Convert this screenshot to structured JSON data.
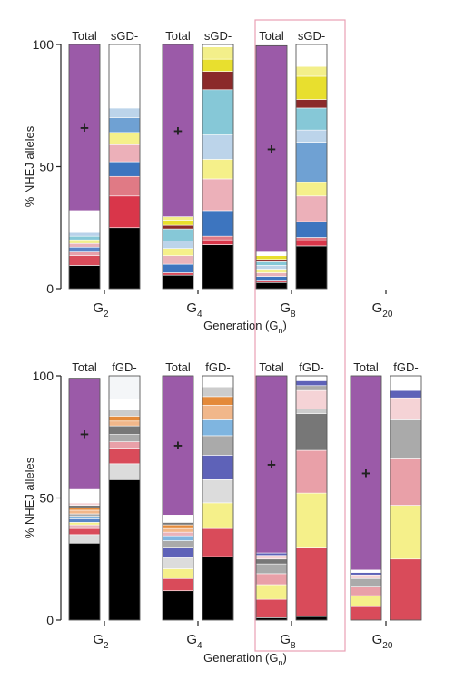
{
  "chart_data": [
    {
      "type": "bar",
      "stacked": true,
      "ylabel": "% NHEJ alleles",
      "xlabel": "Generation (G",
      "xlabel_sub": "n",
      "xlabel_tail": ")",
      "ylim": [
        0,
        100
      ],
      "yticks": [
        "0",
        "50",
        "100"
      ],
      "generations": [
        {
          "label": "G",
          "sub": "2",
          "bars": [
            {
              "name": "Total",
              "mark": "+",
              "segments": [
                {
                  "value": 9.5,
                  "color": "#000000"
                },
                {
                  "value": 4.0,
                  "color": "#d94b5a"
                },
                {
                  "value": 1.5,
                  "color": "#e8a0aa"
                },
                {
                  "value": 2.0,
                  "color": "#5a85c8"
                },
                {
                  "value": 1.5,
                  "color": "#e9b3bb"
                },
                {
                  "value": 1.5,
                  "color": "#f0ef8e"
                },
                {
                  "value": 1.5,
                  "color": "#86c8d7"
                },
                {
                  "value": 1.5,
                  "color": "#b9d2ea"
                },
                {
                  "value": 9.0,
                  "color": "#ffffff"
                },
                {
                  "value": 68.0,
                  "color": "#9b5aa8"
                }
              ]
            },
            {
              "name": "sGD-",
              "segments": [
                {
                  "value": 25.0,
                  "color": "#000000"
                },
                {
                  "value": 13.0,
                  "color": "#d9364a"
                },
                {
                  "value": 8.0,
                  "color": "#e07a85"
                },
                {
                  "value": 6.0,
                  "color": "#3d75bf"
                },
                {
                  "value": 7.0,
                  "color": "#ecb0b9"
                },
                {
                  "value": 5.0,
                  "color": "#f5f08a"
                },
                {
                  "value": 6.0,
                  "color": "#6fa1d3"
                },
                {
                  "value": 4.0,
                  "color": "#bcd4ea"
                },
                {
                  "value": 26.0,
                  "color": "#ffffff"
                }
              ]
            }
          ]
        },
        {
          "label": "G",
          "sub": "4",
          "bars": [
            {
              "name": "Total",
              "mark": "+",
              "segments": [
                {
                  "value": 5.5,
                  "color": "#000000"
                },
                {
                  "value": 1.0,
                  "color": "#d94b5a"
                },
                {
                  "value": 3.5,
                  "color": "#3d75bf"
                },
                {
                  "value": 3.5,
                  "color": "#e9b3bb"
                },
                {
                  "value": 3.0,
                  "color": "#f5f08a"
                },
                {
                  "value": 3.0,
                  "color": "#bcd4ea"
                },
                {
                  "value": 5.0,
                  "color": "#86c8d7"
                },
                {
                  "value": 1.5,
                  "color": "#8b2a2a"
                },
                {
                  "value": 2.0,
                  "color": "#e8df2e"
                },
                {
                  "value": 1.5,
                  "color": "#f3ef8a"
                },
                {
                  "value": 70.5,
                  "color": "#9b5aa8"
                }
              ]
            },
            {
              "name": "sGD-",
              "segments": [
                {
                  "value": 18.0,
                  "color": "#000000"
                },
                {
                  "value": 2.0,
                  "color": "#d9364a"
                },
                {
                  "value": 1.5,
                  "color": "#e07a85"
                },
                {
                  "value": 10.5,
                  "color": "#3d75bf"
                },
                {
                  "value": 13.0,
                  "color": "#ecb0b9"
                },
                {
                  "value": 8.0,
                  "color": "#f5f08a"
                },
                {
                  "value": 10.0,
                  "color": "#bcd4ea"
                },
                {
                  "value": 18.5,
                  "color": "#86c8d7"
                },
                {
                  "value": 7.5,
                  "color": "#8b2a2a"
                },
                {
                  "value": 5.0,
                  "color": "#e8df2e"
                },
                {
                  "value": 5.0,
                  "color": "#f3ef8a"
                },
                {
                  "value": 1.0,
                  "color": "#ffffff"
                }
              ]
            }
          ]
        },
        {
          "label": "G",
          "sub": "8",
          "bars": [
            {
              "name": "Total",
              "mark": "+",
              "segments": [
                {
                  "value": 2.5,
                  "color": "#000000"
                },
                {
                  "value": 1.0,
                  "color": "#d94b5a"
                },
                {
                  "value": 1.5,
                  "color": "#3d75bf"
                },
                {
                  "value": 1.5,
                  "color": "#e9b3bb"
                },
                {
                  "value": 1.5,
                  "color": "#f5f08a"
                },
                {
                  "value": 1.5,
                  "color": "#bcd4ea"
                },
                {
                  "value": 1.5,
                  "color": "#86c8d7"
                },
                {
                  "value": 1.0,
                  "color": "#8b2a2a"
                },
                {
                  "value": 1.5,
                  "color": "#e8df2e"
                },
                {
                  "value": 1.5,
                  "color": "#ffffff"
                },
                {
                  "value": 84.5,
                  "color": "#9b5aa8"
                }
              ]
            },
            {
              "name": "sGD-",
              "segments": [
                {
                  "value": 17.5,
                  "color": "#000000"
                },
                {
                  "value": 2.0,
                  "color": "#d9364a"
                },
                {
                  "value": 1.5,
                  "color": "#e07a85"
                },
                {
                  "value": 6.5,
                  "color": "#3d75bf"
                },
                {
                  "value": 10.5,
                  "color": "#ecb0b9"
                },
                {
                  "value": 5.5,
                  "color": "#f5f08a"
                },
                {
                  "value": 16.5,
                  "color": "#6fa1d3"
                },
                {
                  "value": 5.0,
                  "color": "#bcd4ea"
                },
                {
                  "value": 9.0,
                  "color": "#86c8d7"
                },
                {
                  "value": 3.5,
                  "color": "#8b2a2a"
                },
                {
                  "value": 9.5,
                  "color": "#e8df2e"
                },
                {
                  "value": 4.0,
                  "color": "#f3ef8a"
                },
                {
                  "value": 9.0,
                  "color": "#ffffff"
                }
              ]
            }
          ]
        },
        {
          "label": "G",
          "sub": "20",
          "bars": []
        }
      ]
    },
    {
      "type": "bar",
      "stacked": true,
      "ylabel": "% NHEJ alleles",
      "xlabel": "Generation (G",
      "xlabel_sub": "n",
      "xlabel_tail": ")",
      "ylim": [
        0,
        100
      ],
      "yticks": [
        "0",
        "50",
        "100"
      ],
      "generations": [
        {
          "label": "G",
          "sub": "2",
          "bars": [
            {
              "name": "Total",
              "mark": "+",
              "segments": [
                {
                  "value": 31.5,
                  "color": "#000000"
                },
                {
                  "value": 3.5,
                  "color": "#dcdcdc"
                },
                {
                  "value": 2.5,
                  "color": "#d94b5a"
                },
                {
                  "value": 1.5,
                  "color": "#e9b3bb"
                },
                {
                  "value": 1.0,
                  "color": "#f5f08a"
                },
                {
                  "value": 1.5,
                  "color": "#5a85c8"
                },
                {
                  "value": 1.0,
                  "color": "#7fb5e0"
                },
                {
                  "value": 1.0,
                  "color": "#aaaaaa"
                },
                {
                  "value": 1.5,
                  "color": "#f1b78a"
                },
                {
                  "value": 1.0,
                  "color": "#e48a3a"
                },
                {
                  "value": 1.0,
                  "color": "#777777"
                },
                {
                  "value": 1.0,
                  "color": "#f5d3d6"
                },
                {
                  "value": 5.5,
                  "color": "#ffffff"
                },
                {
                  "value": 45.5,
                  "color": "#9b5aa8"
                }
              ]
            },
            {
              "name": "fGD-",
              "segments": [
                {
                  "value": 57.5,
                  "color": "#000000"
                },
                {
                  "value": 6.5,
                  "color": "#dcdcdc"
                },
                {
                  "value": 6.0,
                  "color": "#d94b5a"
                },
                {
                  "value": 3.0,
                  "color": "#e9a0a8"
                },
                {
                  "value": 3.0,
                  "color": "#aaaaaa"
                },
                {
                  "value": 3.5,
                  "color": "#777777"
                },
                {
                  "value": 2.0,
                  "color": "#f1b78a"
                },
                {
                  "value": 2.0,
                  "color": "#e48a3a"
                },
                {
                  "value": 2.5,
                  "color": "#cccccc"
                },
                {
                  "value": 4.5,
                  "color": "#ffffff"
                },
                {
                  "value": 9.5,
                  "color": "#f4f6f8"
                }
              ]
            }
          ]
        },
        {
          "label": "G",
          "sub": "4",
          "bars": [
            {
              "name": "Total",
              "mark": "+",
              "segments": [
                {
                  "value": 12.0,
                  "color": "#000000"
                },
                {
                  "value": 5.0,
                  "color": "#d94b5a"
                },
                {
                  "value": 4.0,
                  "color": "#f5f08a"
                },
                {
                  "value": 4.5,
                  "color": "#dcdcdc"
                },
                {
                  "value": 4.0,
                  "color": "#5e62b8"
                },
                {
                  "value": 3.0,
                  "color": "#aaaaaa"
                },
                {
                  "value": 2.0,
                  "color": "#7fb5e0"
                },
                {
                  "value": 1.5,
                  "color": "#e9b3bb"
                },
                {
                  "value": 1.5,
                  "color": "#f1b78a"
                },
                {
                  "value": 1.5,
                  "color": "#e48a3a"
                },
                {
                  "value": 1.0,
                  "color": "#777777"
                },
                {
                  "value": 3.0,
                  "color": "#ffffff"
                },
                {
                  "value": 57.0,
                  "color": "#9b5aa8"
                }
              ]
            },
            {
              "name": "fGD-",
              "segments": [
                {
                  "value": 26.0,
                  "color": "#000000"
                },
                {
                  "value": 11.5,
                  "color": "#d94b5a"
                },
                {
                  "value": 10.5,
                  "color": "#f5f08a"
                },
                {
                  "value": 9.5,
                  "color": "#dcdcdc"
                },
                {
                  "value": 10.0,
                  "color": "#5e62b8"
                },
                {
                  "value": 8.0,
                  "color": "#aaaaaa"
                },
                {
                  "value": 6.5,
                  "color": "#7fb5e0"
                },
                {
                  "value": 6.0,
                  "color": "#f1b78a"
                },
                {
                  "value": 3.5,
                  "color": "#e48a3a"
                },
                {
                  "value": 4.0,
                  "color": "#cccccc"
                },
                {
                  "value": 4.5,
                  "color": "#ffffff"
                }
              ]
            }
          ]
        },
        {
          "label": "G",
          "sub": "8",
          "bars": [
            {
              "name": "Total",
              "mark": "+",
              "segments": [
                {
                  "value": 1.0,
                  "color": "#000000"
                },
                {
                  "value": 7.5,
                  "color": "#d94b5a"
                },
                {
                  "value": 6.0,
                  "color": "#f5f08a"
                },
                {
                  "value": 4.5,
                  "color": "#e9a0a8"
                },
                {
                  "value": 4.0,
                  "color": "#aaaaaa"
                },
                {
                  "value": 2.0,
                  "color": "#777777"
                },
                {
                  "value": 1.5,
                  "color": "#f5d3d6"
                },
                {
                  "value": 1.0,
                  "color": "#5e62b8"
                },
                {
                  "value": 72.5,
                  "color": "#9b5aa8"
                }
              ]
            },
            {
              "name": "fGD-",
              "segments": [
                {
                  "value": 1.5,
                  "color": "#000000"
                },
                {
                  "value": 28.0,
                  "color": "#d94b5a"
                },
                {
                  "value": 22.5,
                  "color": "#f5f08a"
                },
                {
                  "value": 17.5,
                  "color": "#e9a0a8"
                },
                {
                  "value": 15.0,
                  "color": "#777777"
                },
                {
                  "value": 2.0,
                  "color": "#cccccc"
                },
                {
                  "value": 7.5,
                  "color": "#f5d3d6"
                },
                {
                  "value": 2.0,
                  "color": "#aaaaaa"
                },
                {
                  "value": 2.0,
                  "color": "#5e62b8"
                },
                {
                  "value": 2.0,
                  "color": "#ffffff"
                }
              ]
            }
          ]
        },
        {
          "label": "G",
          "sub": "20",
          "bars": [
            {
              "name": "Total",
              "mark": "+",
              "segments": [
                {
                  "value": 5.5,
                  "color": "#d94b5a"
                },
                {
                  "value": 4.5,
                  "color": "#f5f08a"
                },
                {
                  "value": 3.5,
                  "color": "#e9a0a8"
                },
                {
                  "value": 3.5,
                  "color": "#aaaaaa"
                },
                {
                  "value": 1.5,
                  "color": "#f5d3d6"
                },
                {
                  "value": 1.0,
                  "color": "#5e62b8"
                },
                {
                  "value": 1.0,
                  "color": "#ffffff"
                },
                {
                  "value": 79.5,
                  "color": "#9b5aa8"
                }
              ]
            },
            {
              "name": "fGD-",
              "segments": [
                {
                  "value": 25.0,
                  "color": "#d94b5a"
                },
                {
                  "value": 22.0,
                  "color": "#f5f08a"
                },
                {
                  "value": 19.0,
                  "color": "#e9a0a8"
                },
                {
                  "value": 16.0,
                  "color": "#aaaaaa"
                },
                {
                  "value": 9.0,
                  "color": "#f5d3d6"
                },
                {
                  "value": 3.0,
                  "color": "#5e62b8"
                },
                {
                  "value": 6.0,
                  "color": "#ffffff"
                }
              ]
            }
          ]
        }
      ]
    }
  ],
  "highlight_color": "#e8a0b4"
}
